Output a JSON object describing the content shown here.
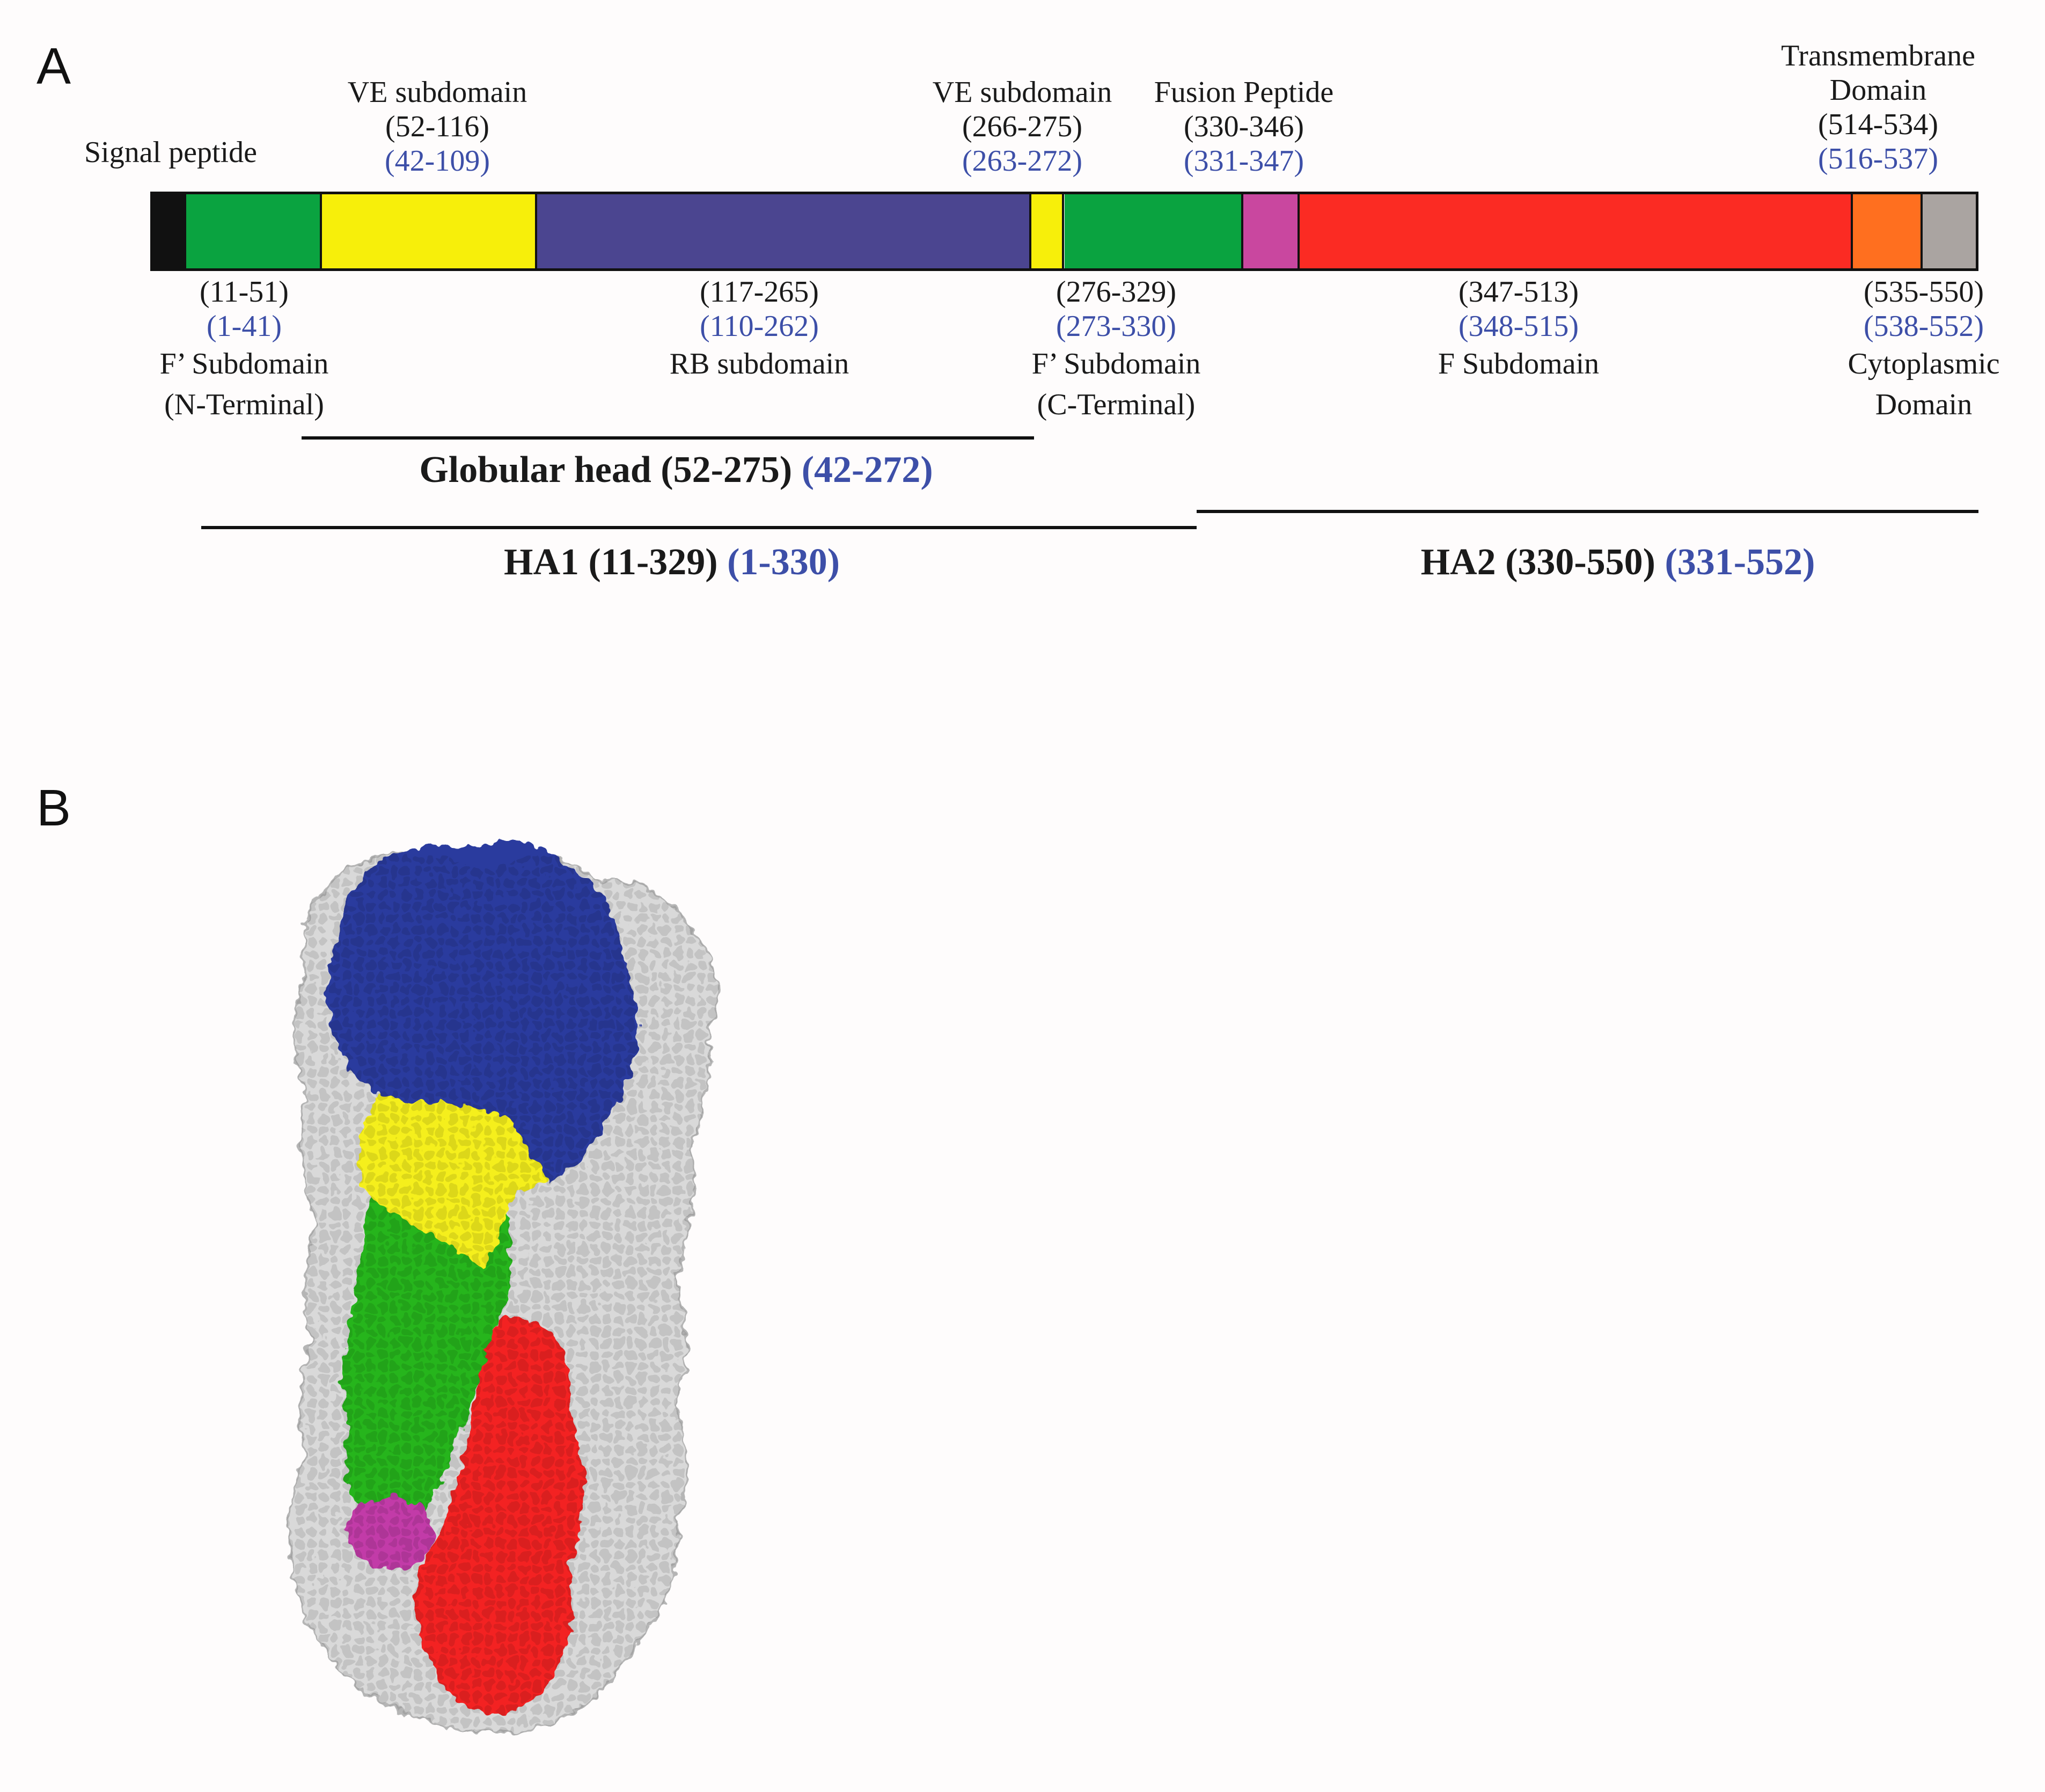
{
  "panels": {
    "a_label": "A",
    "b_label": "B"
  },
  "colors": {
    "signal": "#111111",
    "f_prime": "#0aa340",
    "ve": "#f7ef0a",
    "rb": "#4b4590",
    "fusion": "#c9479f",
    "f_sub": "#fb2b23",
    "tm": "#ff6f1f",
    "cyto": "#aaa4a1",
    "label_blue": "#3d4fa8",
    "surface_gray": "#d9d9d9"
  },
  "segments": [
    {
      "name": "signal-peptide",
      "color": "#111111",
      "start": 1,
      "end": 10
    },
    {
      "name": "f-prime-n",
      "color": "#0aa340",
      "start": 11,
      "end": 51
    },
    {
      "name": "ve-n",
      "color": "#f7ef0a",
      "start": 52,
      "end": 116
    },
    {
      "name": "rb",
      "color": "#4b4590",
      "start": 117,
      "end": 265
    },
    {
      "name": "ve-c",
      "color": "#f7ef0a",
      "start": 266,
      "end": 275
    },
    {
      "name": "f-prime-c",
      "color": "#0aa340",
      "start": 276,
      "end": 329
    },
    {
      "name": "fusion",
      "color": "#c9479f",
      "start": 330,
      "end": 346
    },
    {
      "name": "f-sub",
      "color": "#fb2b23",
      "start": 347,
      "end": 513
    },
    {
      "name": "tm",
      "color": "#ff6f1f",
      "start": 514,
      "end": 534
    },
    {
      "name": "cyto",
      "color": "#aaa4a1",
      "start": 535,
      "end": 550
    }
  ],
  "labels": {
    "signal": {
      "name": "Signal peptide"
    },
    "ve1": {
      "name": "VE subdomain",
      "range": "(52-116)",
      "range_blue": "(42-109)"
    },
    "ve2": {
      "name": "VE subdomain",
      "range": "(266-275)",
      "range_blue": "(263-272)"
    },
    "fusion": {
      "name": "Fusion Peptide",
      "range": "(330-346)",
      "range_blue": "(331-347)"
    },
    "tm": {
      "name1": "Transmembrane",
      "name2": "Domain",
      "range": "(514-534)",
      "range_blue": "(516-537)"
    },
    "fprime_n": {
      "range": "(11-51)",
      "range_blue": "(1-41)",
      "name1": "F’ Subdomain",
      "name2": "(N-Terminal)"
    },
    "rb": {
      "range": "(117-265)",
      "range_blue": "(110-262)",
      "name": "RB subdomain"
    },
    "fprime_c": {
      "range": "(276-329)",
      "range_blue": "(273-330)",
      "name1": "F’ Subdomain",
      "name2": "(C-Terminal)"
    },
    "fsub": {
      "range": "(347-513)",
      "range_blue": "(348-515)",
      "name": "F Subdomain"
    },
    "cyto": {
      "range": "(535-550)",
      "range_blue": "(538-552)",
      "name1": "Cytoplasmic",
      "name2": "Domain"
    }
  },
  "regions": {
    "globular": {
      "text": "Globular head (52-275)",
      "blue": "(42-272)"
    },
    "ha1": {
      "text": "HA1 (11-329)",
      "blue": "(1-330)"
    },
    "ha2": {
      "text": "HA2 (330-550)",
      "blue": "(331-552)"
    }
  }
}
